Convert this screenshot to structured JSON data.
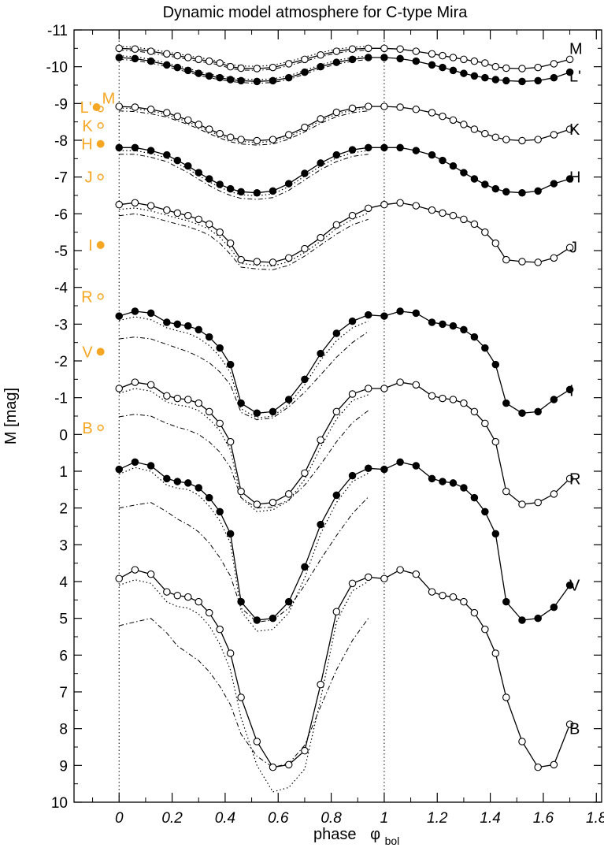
{
  "chart_data": {
    "type": "line",
    "title": "Dynamic model atmosphere for C-type Mira",
    "xlabel": "phase",
    "xlabel_symbol": "φ",
    "xlabel_subscript": "bol",
    "ylabel": "M  [mag]",
    "xlim": [
      -0.17,
      1.82
    ],
    "ylim": [
      10,
      -11
    ],
    "y_inverted": true,
    "xticks": [
      "0",
      "0.2",
      "0.4",
      "0.6",
      "0.8",
      "1",
      "1.2",
      "1.4",
      "1.6",
      "1.8"
    ],
    "xtick_values": [
      0,
      0.2,
      0.4,
      0.6,
      0.8,
      1,
      1.2,
      1.4,
      1.6,
      1.8
    ],
    "yticks": [
      "-11",
      "-10",
      "-9",
      "-8",
      "-7",
      "-6",
      "-5",
      "-4",
      "-3",
      "-2",
      "-1",
      "0",
      "1",
      "2",
      "3",
      "4",
      "5",
      "6",
      "7",
      "8",
      "9",
      "10"
    ],
    "ytick_values": [
      -11,
      -10,
      -9,
      -8,
      -7,
      -6,
      -5,
      -4,
      -3,
      -2,
      -1,
      0,
      1,
      2,
      3,
      4,
      5,
      6,
      7,
      8,
      9,
      10
    ],
    "vertical_dotted_lines": [
      0,
      1
    ],
    "grid": false,
    "colors": {
      "model": "#000000",
      "reference": "#f5a623"
    },
    "series": [
      {
        "name": "M",
        "marker": "open",
        "label_y": -10.5,
        "x": [
          0,
          0.06,
          0.12,
          0.18,
          0.22,
          0.26,
          0.3,
          0.34,
          0.38,
          0.42,
          0.46,
          0.52,
          0.58,
          0.64,
          0.7,
          0.76,
          0.82,
          0.88,
          0.94,
          1.0,
          1.06,
          1.12,
          1.18,
          1.22,
          1.26,
          1.3,
          1.34,
          1.38,
          1.42,
          1.46,
          1.52,
          1.58,
          1.64,
          1.7
        ],
        "y": [
          -10.5,
          -10.48,
          -10.42,
          -10.35,
          -10.3,
          -10.25,
          -10.2,
          -10.15,
          -10.1,
          -10.0,
          -9.96,
          -9.95,
          -9.98,
          -10.08,
          -10.2,
          -10.32,
          -10.42,
          -10.48,
          -10.5,
          -10.5,
          -10.48,
          -10.42,
          -10.35,
          -10.3,
          -10.25,
          -10.2,
          -10.15,
          -10.1,
          -10.0,
          -9.96,
          -9.95,
          -9.98,
          -10.08,
          -10.2
        ],
        "dotted": [
          -10.55,
          -10.53,
          -10.47,
          -10.4,
          -10.35,
          -10.3,
          -10.25,
          -10.2,
          -10.15,
          -10.06,
          -10.02,
          -10.01,
          -10.04,
          -10.14,
          -10.26,
          -10.38,
          -10.48,
          -10.53,
          -10.55
        ],
        "dashdot": [
          -10.45,
          -10.43,
          -10.37,
          -10.3,
          -10.25,
          -10.2,
          -10.15,
          -10.1,
          -10.05,
          -9.95,
          -9.91,
          -9.9,
          -9.93,
          -10.03,
          -10.15,
          -10.27,
          -10.37,
          -10.43,
          -10.45
        ]
      },
      {
        "name": "L'",
        "marker": "filled",
        "label_y": -9.75,
        "x": [
          0,
          0.06,
          0.12,
          0.18,
          0.22,
          0.26,
          0.3,
          0.34,
          0.38,
          0.42,
          0.46,
          0.52,
          0.58,
          0.64,
          0.7,
          0.76,
          0.82,
          0.88,
          0.94,
          1.0,
          1.06,
          1.12,
          1.18,
          1.22,
          1.26,
          1.3,
          1.34,
          1.38,
          1.42,
          1.46,
          1.52,
          1.58,
          1.64,
          1.7
        ],
        "y": [
          -10.25,
          -10.22,
          -10.15,
          -10.05,
          -9.98,
          -9.9,
          -9.82,
          -9.75,
          -9.7,
          -9.65,
          -9.62,
          -9.6,
          -9.62,
          -9.7,
          -9.85,
          -10.0,
          -10.12,
          -10.2,
          -10.25,
          -10.25,
          -10.22,
          -10.15,
          -10.05,
          -9.98,
          -9.9,
          -9.82,
          -9.75,
          -9.7,
          -9.65,
          -9.62,
          -9.6,
          -9.62,
          -9.7,
          -9.85
        ],
        "dotted": [
          -10.3,
          -10.27,
          -10.2,
          -10.1,
          -10.03,
          -9.95,
          -9.87,
          -9.8,
          -9.75,
          -9.7,
          -9.67,
          -9.65,
          -9.67,
          -9.75,
          -9.9,
          -10.05,
          -10.17,
          -10.25,
          -10.3
        ],
        "dashdot": [
          -10.2,
          -10.17,
          -10.1,
          -10.0,
          -9.93,
          -9.85,
          -9.77,
          -9.7,
          -9.65,
          -9.6,
          -9.57,
          -9.55,
          -9.57,
          -9.65,
          -9.8,
          -9.95,
          -10.07,
          -10.15,
          -10.2
        ]
      },
      {
        "name": "K",
        "marker": "open",
        "label_y": -8.3,
        "x": [
          0,
          0.06,
          0.12,
          0.18,
          0.22,
          0.26,
          0.3,
          0.34,
          0.38,
          0.42,
          0.46,
          0.52,
          0.58,
          0.64,
          0.7,
          0.76,
          0.82,
          0.88,
          0.94,
          1.0,
          1.06,
          1.12,
          1.18,
          1.22,
          1.26,
          1.3,
          1.34,
          1.38,
          1.42,
          1.46,
          1.52,
          1.58,
          1.64,
          1.7
        ],
        "y": [
          -8.92,
          -8.9,
          -8.84,
          -8.75,
          -8.65,
          -8.55,
          -8.43,
          -8.3,
          -8.18,
          -8.08,
          -8.02,
          -7.99,
          -8.02,
          -8.15,
          -8.35,
          -8.58,
          -8.76,
          -8.87,
          -8.92,
          -8.92,
          -8.9,
          -8.84,
          -8.75,
          -8.65,
          -8.55,
          -8.43,
          -8.3,
          -8.18,
          -8.08,
          -8.02,
          -7.99,
          -8.02,
          -8.15,
          -8.3
        ],
        "dotted": [
          -8.88,
          -8.86,
          -8.8,
          -8.7,
          -8.6,
          -8.5,
          -8.38,
          -8.25,
          -8.13,
          -8.03,
          -7.97,
          -7.94,
          -7.97,
          -8.1,
          -8.3,
          -8.53,
          -8.71,
          -8.82,
          -8.88
        ],
        "dashdot": [
          -8.8,
          -8.78,
          -8.72,
          -8.63,
          -8.53,
          -8.43,
          -8.31,
          -8.18,
          -8.06,
          -7.96,
          -7.9,
          -7.87,
          -7.9,
          -8.03,
          -8.23,
          -8.46,
          -8.64,
          -8.75,
          -8.8
        ]
      },
      {
        "name": "H",
        "marker": "filled",
        "label_y": -7.0,
        "x": [
          0,
          0.06,
          0.12,
          0.18,
          0.22,
          0.26,
          0.3,
          0.34,
          0.38,
          0.42,
          0.46,
          0.52,
          0.58,
          0.64,
          0.7,
          0.76,
          0.82,
          0.88,
          0.94,
          1.0,
          1.06,
          1.12,
          1.18,
          1.22,
          1.26,
          1.3,
          1.34,
          1.38,
          1.42,
          1.46,
          1.52,
          1.58,
          1.64,
          1.7
        ],
        "y": [
          -7.8,
          -7.8,
          -7.72,
          -7.6,
          -7.45,
          -7.3,
          -7.12,
          -6.95,
          -6.8,
          -6.68,
          -6.6,
          -6.57,
          -6.62,
          -6.82,
          -7.1,
          -7.38,
          -7.6,
          -7.74,
          -7.8,
          -7.8,
          -7.8,
          -7.72,
          -7.6,
          -7.45,
          -7.3,
          -7.12,
          -6.95,
          -6.8,
          -6.68,
          -6.6,
          -6.57,
          -6.62,
          -6.82,
          -6.95
        ],
        "dotted": [
          -7.72,
          -7.72,
          -7.64,
          -7.52,
          -7.37,
          -7.22,
          -7.04,
          -6.87,
          -6.72,
          -6.6,
          -6.52,
          -6.49,
          -6.54,
          -6.74,
          -7.02,
          -7.3,
          -7.52,
          -7.66,
          -7.72
        ],
        "dashdot": [
          -7.62,
          -7.62,
          -7.54,
          -7.42,
          -7.27,
          -7.12,
          -6.94,
          -6.77,
          -6.62,
          -6.5,
          -6.42,
          -6.39,
          -6.44,
          -6.64,
          -6.92,
          -7.2,
          -7.42,
          -7.56,
          -7.62
        ]
      },
      {
        "name": "J",
        "marker": "open",
        "label_y": -5.1,
        "x": [
          0,
          0.06,
          0.12,
          0.18,
          0.22,
          0.26,
          0.3,
          0.34,
          0.38,
          0.42,
          0.46,
          0.52,
          0.58,
          0.64,
          0.7,
          0.76,
          0.82,
          0.88,
          0.94,
          1.0,
          1.06,
          1.12,
          1.18,
          1.22,
          1.26,
          1.3,
          1.34,
          1.38,
          1.42,
          1.46,
          1.52,
          1.58,
          1.64,
          1.7
        ],
        "y": [
          -6.25,
          -6.3,
          -6.22,
          -6.1,
          -6.02,
          -5.95,
          -5.85,
          -5.72,
          -5.5,
          -5.2,
          -4.75,
          -4.7,
          -4.68,
          -4.8,
          -5.05,
          -5.35,
          -5.7,
          -5.95,
          -6.15,
          -6.25,
          -6.3,
          -6.22,
          -6.1,
          -6.02,
          -5.95,
          -5.85,
          -5.72,
          -5.5,
          -5.2,
          -4.75,
          -4.7,
          -4.68,
          -4.8,
          -5.08
        ],
        "dotted": [
          -6.12,
          -6.16,
          -6.08,
          -5.96,
          -5.88,
          -5.81,
          -5.71,
          -5.58,
          -5.36,
          -5.06,
          -4.65,
          -4.6,
          -4.58,
          -4.7,
          -4.95,
          -5.25,
          -5.6,
          -5.85,
          -6.02
        ],
        "dashdot": [
          -5.95,
          -6.0,
          -5.92,
          -5.8,
          -5.72,
          -5.65,
          -5.55,
          -5.42,
          -5.2,
          -4.9,
          -4.55,
          -4.5,
          -4.48,
          -4.6,
          -4.85,
          -5.15,
          -5.45,
          -5.7,
          -5.85
        ]
      },
      {
        "name": "I",
        "marker": "filled",
        "label_y": -1.2,
        "x": [
          0,
          0.06,
          0.12,
          0.18,
          0.22,
          0.26,
          0.3,
          0.34,
          0.38,
          0.42,
          0.46,
          0.52,
          0.58,
          0.64,
          0.7,
          0.76,
          0.82,
          0.88,
          0.94,
          1.0,
          1.06,
          1.12,
          1.18,
          1.22,
          1.26,
          1.3,
          1.34,
          1.38,
          1.42,
          1.46,
          1.52,
          1.58,
          1.64,
          1.7
        ],
        "y": [
          -3.22,
          -3.35,
          -3.3,
          -3.05,
          -3.0,
          -2.95,
          -2.85,
          -2.65,
          -2.35,
          -1.9,
          -0.85,
          -0.58,
          -0.62,
          -0.95,
          -1.5,
          -2.2,
          -2.75,
          -3.08,
          -3.25,
          -3.22,
          -3.35,
          -3.3,
          -3.05,
          -3.0,
          -2.95,
          -2.85,
          -2.65,
          -2.35,
          -1.9,
          -0.85,
          -0.58,
          -0.62,
          -0.95,
          -1.22
        ],
        "dotted": [
          -3.1,
          -3.2,
          -3.12,
          -2.9,
          -2.82,
          -2.75,
          -2.62,
          -2.42,
          -2.12,
          -1.68,
          -0.7,
          -0.45,
          -0.5,
          -0.82,
          -1.35,
          -2.02,
          -2.55,
          -2.9,
          -3.08
        ],
        "dashdot": [
          -2.6,
          -2.65,
          -2.6,
          -2.45,
          -2.35,
          -2.25,
          -2.12,
          -1.95,
          -1.7,
          -1.35,
          -0.6,
          -0.4,
          -0.45,
          -0.75,
          -1.15,
          -1.62,
          -2.1,
          -2.5,
          -2.8
        ]
      },
      {
        "name": "R",
        "marker": "open",
        "label_y": 1.2,
        "x": [
          0,
          0.06,
          0.12,
          0.18,
          0.22,
          0.26,
          0.3,
          0.34,
          0.38,
          0.42,
          0.46,
          0.52,
          0.58,
          0.64,
          0.7,
          0.76,
          0.82,
          0.88,
          0.94,
          1.0,
          1.06,
          1.12,
          1.18,
          1.22,
          1.26,
          1.3,
          1.34,
          1.38,
          1.42,
          1.46,
          1.52,
          1.58,
          1.64,
          1.7
        ],
        "y": [
          -1.25,
          -1.42,
          -1.35,
          -1.05,
          -0.98,
          -0.95,
          -0.85,
          -0.62,
          -0.3,
          0.2,
          1.55,
          1.9,
          1.85,
          1.62,
          1.05,
          0.15,
          -0.62,
          -1.1,
          -1.25,
          -1.25,
          -1.42,
          -1.35,
          -1.05,
          -0.98,
          -0.95,
          -0.85,
          -0.62,
          -0.3,
          0.2,
          1.55,
          1.9,
          1.85,
          1.62,
          1.2
        ],
        "dotted": [
          -1.12,
          -1.25,
          -1.18,
          -0.88,
          -0.8,
          -0.76,
          -0.65,
          -0.42,
          -0.1,
          0.42,
          1.72,
          2.1,
          2.05,
          1.8,
          1.22,
          0.35,
          -0.42,
          -0.92,
          -1.08
        ],
        "dashdot": [
          -0.48,
          -0.55,
          -0.5,
          -0.3,
          -0.2,
          -0.12,
          0.0,
          0.2,
          0.48,
          0.9,
          1.72,
          2.0,
          1.98,
          1.78,
          1.38,
          0.82,
          0.2,
          -0.32,
          -0.65
        ]
      },
      {
        "name": "V",
        "marker": "filled",
        "label_y": 4.1,
        "x": [
          0,
          0.06,
          0.12,
          0.18,
          0.22,
          0.26,
          0.3,
          0.34,
          0.38,
          0.42,
          0.46,
          0.52,
          0.58,
          0.64,
          0.7,
          0.76,
          0.82,
          0.88,
          0.94,
          1.0,
          1.06,
          1.12,
          1.18,
          1.22,
          1.26,
          1.3,
          1.34,
          1.38,
          1.42,
          1.46,
          1.52,
          1.58,
          1.64,
          1.7
        ],
        "y": [
          0.95,
          0.75,
          0.85,
          1.2,
          1.28,
          1.32,
          1.45,
          1.72,
          2.1,
          2.7,
          4.55,
          5.05,
          5.0,
          4.55,
          3.6,
          2.45,
          1.65,
          1.12,
          0.92,
          0.95,
          0.75,
          0.85,
          1.2,
          1.28,
          1.32,
          1.45,
          1.72,
          2.1,
          2.7,
          4.55,
          5.05,
          5.0,
          4.7,
          4.1
        ],
        "dotted": [
          1.08,
          0.9,
          1.0,
          1.38,
          1.46,
          1.5,
          1.65,
          1.95,
          2.35,
          2.95,
          4.8,
          5.35,
          5.3,
          4.85,
          3.9,
          2.7,
          1.85,
          1.28,
          1.05
        ],
        "dashdot": [
          2.0,
          1.92,
          1.85,
          2.1,
          2.3,
          2.45,
          2.65,
          2.95,
          3.35,
          3.85,
          4.72,
          5.1,
          5.05,
          4.72,
          4.1,
          3.4,
          2.75,
          2.15,
          1.7
        ]
      },
      {
        "name": "B",
        "marker": "open",
        "label_y": 8.0,
        "x": [
          0,
          0.06,
          0.12,
          0.18,
          0.22,
          0.26,
          0.3,
          0.34,
          0.38,
          0.42,
          0.46,
          0.52,
          0.58,
          0.64,
          0.7,
          0.76,
          0.82,
          0.88,
          0.94,
          1.0,
          1.06,
          1.12,
          1.18,
          1.22,
          1.26,
          1.3,
          1.34,
          1.38,
          1.42,
          1.46,
          1.52,
          1.58,
          1.64,
          1.7
        ],
        "y": [
          3.92,
          3.68,
          3.8,
          4.28,
          4.38,
          4.42,
          4.55,
          4.85,
          5.3,
          5.95,
          7.15,
          8.35,
          9.05,
          8.98,
          8.6,
          6.8,
          4.82,
          4.05,
          3.88,
          3.92,
          3.68,
          3.8,
          4.28,
          4.38,
          4.42,
          4.55,
          4.85,
          5.3,
          5.95,
          7.15,
          8.35,
          9.05,
          8.98,
          7.88
        ],
        "dotted": [
          4.1,
          3.95,
          4.05,
          4.55,
          4.68,
          4.72,
          4.88,
          5.2,
          5.7,
          6.4,
          7.7,
          9.0,
          9.72,
          9.6,
          9.1,
          7.2,
          5.1,
          4.25,
          4.0
        ],
        "dashdot": [
          5.2,
          5.1,
          5.0,
          5.4,
          5.75,
          5.95,
          6.15,
          6.45,
          6.85,
          7.35,
          8.15,
          8.75,
          9.05,
          8.95,
          8.45,
          7.4,
          6.4,
          5.6,
          5.0
        ]
      }
    ],
    "reference_points": [
      {
        "name": "M",
        "x": -0.07,
        "y": -8.85,
        "marker": "open"
      },
      {
        "name": "L'",
        "x": -0.085,
        "y": -8.9,
        "marker": "filled"
      },
      {
        "name": "K",
        "x": -0.07,
        "y": -8.4,
        "marker": "open"
      },
      {
        "name": "H",
        "x": -0.07,
        "y": -7.9,
        "marker": "filled"
      },
      {
        "name": "J",
        "x": -0.07,
        "y": -7.0,
        "marker": "open"
      },
      {
        "name": "I",
        "x": -0.07,
        "y": -5.15,
        "marker": "filled"
      },
      {
        "name": "R",
        "x": -0.07,
        "y": -3.75,
        "marker": "open"
      },
      {
        "name": "V",
        "x": -0.07,
        "y": -2.25,
        "marker": "filled"
      },
      {
        "name": "B",
        "x": -0.07,
        "y": -0.18,
        "marker": "open"
      }
    ]
  }
}
